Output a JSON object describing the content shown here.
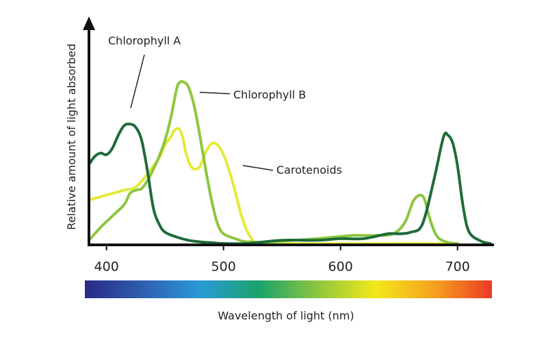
{
  "chart_data": {
    "type": "line",
    "title": "",
    "xlabel": "Wavelength of light (nm)",
    "ylabel": "Relative amount of light absorbed",
    "xlim": [
      385,
      730
    ],
    "ylim": [
      0,
      1
    ],
    "x_ticks": [
      400,
      500,
      600,
      700
    ],
    "x_tick_labels": [
      "400",
      "500",
      "600",
      "700"
    ],
    "grid": false,
    "legend": "none",
    "spectrum_bar": true,
    "series": [
      {
        "name": "Chlorophyll A",
        "color": "#1e6b3a",
        "points": [
          [
            385,
            0.49
          ],
          [
            390,
            0.54
          ],
          [
            395,
            0.56
          ],
          [
            400,
            0.55
          ],
          [
            405,
            0.59
          ],
          [
            410,
            0.67
          ],
          [
            415,
            0.73
          ],
          [
            420,
            0.74
          ],
          [
            425,
            0.72
          ],
          [
            430,
            0.64
          ],
          [
            435,
            0.45
          ],
          [
            440,
            0.22
          ],
          [
            445,
            0.12
          ],
          [
            450,
            0.07
          ],
          [
            460,
            0.04
          ],
          [
            470,
            0.02
          ],
          [
            480,
            0.01
          ],
          [
            490,
            0.005
          ],
          [
            500,
            0.0
          ],
          [
            520,
            0.0
          ],
          [
            550,
            0.02
          ],
          [
            580,
            0.02
          ],
          [
            600,
            0.03
          ],
          [
            620,
            0.03
          ],
          [
            640,
            0.06
          ],
          [
            650,
            0.06
          ],
          [
            660,
            0.07
          ],
          [
            670,
            0.12
          ],
          [
            680,
            0.4
          ],
          [
            688,
            0.66
          ],
          [
            692,
            0.67
          ],
          [
            696,
            0.62
          ],
          [
            700,
            0.48
          ],
          [
            705,
            0.22
          ],
          [
            710,
            0.07
          ],
          [
            720,
            0.015
          ],
          [
            728,
            0.0
          ]
        ]
      },
      {
        "name": "Chlorophyll B",
        "color": "#8cc63f",
        "points": [
          [
            385,
            0.02
          ],
          [
            395,
            0.1
          ],
          [
            405,
            0.17
          ],
          [
            415,
            0.24
          ],
          [
            420,
            0.31
          ],
          [
            425,
            0.33
          ],
          [
            430,
            0.34
          ],
          [
            435,
            0.39
          ],
          [
            440,
            0.46
          ],
          [
            445,
            0.54
          ],
          [
            450,
            0.64
          ],
          [
            455,
            0.78
          ],
          [
            460,
            0.96
          ],
          [
            463,
            1.0
          ],
          [
            466,
            1.0
          ],
          [
            470,
            0.97
          ],
          [
            475,
            0.85
          ],
          [
            480,
            0.66
          ],
          [
            485,
            0.45
          ],
          [
            490,
            0.26
          ],
          [
            495,
            0.12
          ],
          [
            500,
            0.06
          ],
          [
            510,
            0.03
          ],
          [
            520,
            0.01
          ],
          [
            540,
            0.01
          ],
          [
            560,
            0.02
          ],
          [
            580,
            0.03
          ],
          [
            595,
            0.04
          ],
          [
            610,
            0.05
          ],
          [
            620,
            0.05
          ],
          [
            630,
            0.05
          ],
          [
            645,
            0.06
          ],
          [
            655,
            0.13
          ],
          [
            662,
            0.26
          ],
          [
            668,
            0.3
          ],
          [
            672,
            0.27
          ],
          [
            676,
            0.16
          ],
          [
            682,
            0.05
          ],
          [
            690,
            0.01
          ],
          [
            700,
            0.0
          ]
        ]
      },
      {
        "name": "Carotenoids",
        "color": "#e3ea3a",
        "points": [
          [
            385,
            0.27
          ],
          [
            400,
            0.3
          ],
          [
            415,
            0.33
          ],
          [
            425,
            0.35
          ],
          [
            435,
            0.43
          ],
          [
            440,
            0.48
          ],
          [
            445,
            0.53
          ],
          [
            450,
            0.61
          ],
          [
            455,
            0.66
          ],
          [
            458,
            0.7
          ],
          [
            462,
            0.71
          ],
          [
            465,
            0.66
          ],
          [
            468,
            0.56
          ],
          [
            472,
            0.48
          ],
          [
            476,
            0.46
          ],
          [
            480,
            0.48
          ],
          [
            485,
            0.57
          ],
          [
            490,
            0.62
          ],
          [
            495,
            0.61
          ],
          [
            500,
            0.55
          ],
          [
            505,
            0.45
          ],
          [
            510,
            0.32
          ],
          [
            515,
            0.18
          ],
          [
            520,
            0.08
          ],
          [
            525,
            0.02
          ],
          [
            530,
            0.0
          ],
          [
            700,
            0.0
          ]
        ]
      }
    ],
    "annotations": [
      {
        "text": "Chlorophyll A",
        "series": "Chlorophyll A"
      },
      {
        "text": "Chlorophyll B",
        "series": "Chlorophyll B"
      },
      {
        "text": "Carotenoids",
        "series": "Carotenoids"
      }
    ],
    "spectrum_colors": [
      "#2a2a86",
      "#2e5fb0",
      "#2a9ad6",
      "#1aa36a",
      "#8dc63f",
      "#f3e81a",
      "#f6a21f",
      "#ec3a26"
    ]
  }
}
